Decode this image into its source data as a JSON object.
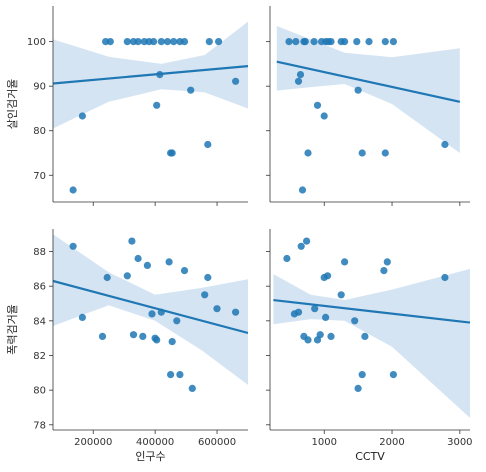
{
  "figure": {
    "type": "pairplot_regression_grid",
    "row_labels": [
      "살인검거율",
      "폭력검거율"
    ],
    "col_labels": [
      "인구수",
      "CCTV"
    ],
    "point_color": "#1f77b4",
    "band_color": "#c6dbef"
  },
  "chart_data": [
    {
      "type": "scatter",
      "row": 0,
      "col": 0,
      "xlabel": "",
      "ylabel": "살인검거율",
      "xlim": [
        70000,
        700000
      ],
      "ylim": [
        64,
        108
      ],
      "yticks": [
        70,
        80,
        90,
        100
      ],
      "xticks": [],
      "points": [
        [
          135000,
          66.7
        ],
        [
          165000,
          83.3
        ],
        [
          240000,
          100
        ],
        [
          255000,
          100
        ],
        [
          310000,
          100
        ],
        [
          330000,
          100
        ],
        [
          345000,
          100
        ],
        [
          365000,
          100
        ],
        [
          380000,
          100
        ],
        [
          395000,
          100
        ],
        [
          405000,
          85.7
        ],
        [
          415000,
          92.6
        ],
        [
          420000,
          100
        ],
        [
          440000,
          100
        ],
        [
          450000,
          75
        ],
        [
          455000,
          75
        ],
        [
          460000,
          100
        ],
        [
          480000,
          100
        ],
        [
          495000,
          100
        ],
        [
          515000,
          89.1
        ],
        [
          570000,
          76.9
        ],
        [
          575000,
          100
        ],
        [
          605000,
          100
        ],
        [
          660000,
          91.1
        ]
      ],
      "regression": {
        "x": [
          70000,
          700000
        ],
        "y": [
          90.6,
          94.5
        ]
      },
      "ci": {
        "x": [
          70000,
          250000,
          420000,
          560000,
          700000
        ],
        "lower": [
          80.5,
          86.5,
          89.3,
          88.6,
          85.0
        ],
        "upper": [
          100.5,
          96.6,
          95.0,
          97.0,
          104.5
        ]
      }
    },
    {
      "type": "scatter",
      "row": 0,
      "col": 1,
      "xlabel": "",
      "ylabel": "",
      "xlim": [
        200,
        3150
      ],
      "ylim": [
        64,
        108
      ],
      "yticks": [
        70,
        80,
        90,
        100
      ],
      "xticks": [],
      "points": [
        [
          480,
          100
        ],
        [
          580,
          100
        ],
        [
          620,
          91.1
        ],
        [
          650,
          92.6
        ],
        [
          700,
          100
        ],
        [
          720,
          100
        ],
        [
          760,
          75
        ],
        [
          850,
          100
        ],
        [
          900,
          85.7
        ],
        [
          960,
          100
        ],
        [
          1000,
          83.3
        ],
        [
          1020,
          100
        ],
        [
          1060,
          100
        ],
        [
          1100,
          100
        ],
        [
          1250,
          100
        ],
        [
          1300,
          100
        ],
        [
          1480,
          100
        ],
        [
          1500,
          89.1
        ],
        [
          1560,
          75
        ],
        [
          1660,
          100
        ],
        [
          1900,
          75
        ],
        [
          1900,
          100
        ],
        [
          2020,
          100
        ],
        [
          2780,
          76.9
        ],
        [
          680,
          66.7
        ]
      ],
      "regression": {
        "x": [
          300,
          3000
        ],
        "y": [
          95.5,
          86.5
        ]
      },
      "ci": {
        "x": [
          300,
          800,
          1300,
          2000,
          3000
        ],
        "lower": [
          89.0,
          89.8,
          90.5,
          86.0,
          75.0
        ],
        "upper": [
          103.5,
          100.5,
          97.5,
          96.5,
          98.5
        ]
      }
    },
    {
      "type": "scatter",
      "row": 1,
      "col": 0,
      "xlabel": "인구수",
      "ylabel": "폭력검거율",
      "xlim": [
        70000,
        700000
      ],
      "ylim": [
        77.7,
        89.3
      ],
      "yticks": [
        78,
        80,
        82,
        84,
        86,
        88
      ],
      "xticks": [
        200000,
        400000,
        600000
      ],
      "xticklabels": [
        "200000",
        "400000",
        "600000"
      ],
      "points": [
        [
          135000,
          88.3
        ],
        [
          165000,
          84.2
        ],
        [
          230000,
          83.1
        ],
        [
          245000,
          86.5
        ],
        [
          310000,
          86.6
        ],
        [
          325000,
          88.6
        ],
        [
          330000,
          83.2
        ],
        [
          345000,
          87.6
        ],
        [
          360000,
          83.1
        ],
        [
          375000,
          87.2
        ],
        [
          390000,
          84.4
        ],
        [
          400000,
          83.0
        ],
        [
          405000,
          82.9
        ],
        [
          420000,
          84.5
        ],
        [
          445000,
          87.4
        ],
        [
          450000,
          80.9
        ],
        [
          455000,
          82.8
        ],
        [
          470000,
          84.0
        ],
        [
          480000,
          80.9
        ],
        [
          495000,
          86.9
        ],
        [
          520000,
          80.1
        ],
        [
          560000,
          85.5
        ],
        [
          570000,
          86.5
        ],
        [
          600000,
          84.7
        ],
        [
          660000,
          84.5
        ]
      ],
      "regression": {
        "x": [
          70000,
          700000
        ],
        "y": [
          86.3,
          83.3
        ]
      },
      "ci": {
        "x": [
          70000,
          250000,
          400000,
          550000,
          700000
        ],
        "lower": [
          83.7,
          84.9,
          84.0,
          82.3,
          80.3
        ],
        "upper": [
          89.0,
          86.8,
          85.5,
          85.9,
          86.4
        ]
      }
    },
    {
      "type": "scatter",
      "row": 1,
      "col": 1,
      "xlabel": "CCTV",
      "ylabel": "",
      "xlim": [
        200,
        3150
      ],
      "ylim": [
        77.7,
        89.3
      ],
      "yticks": [
        78,
        80,
        82,
        84,
        86,
        88
      ],
      "xticks": [
        1000,
        2000,
        3000
      ],
      "xticklabels": [
        "1000",
        "2000",
        "3000"
      ],
      "points": [
        [
          450,
          87.6
        ],
        [
          560,
          84.4
        ],
        [
          620,
          84.5
        ],
        [
          660,
          88.3
        ],
        [
          700,
          83.1
        ],
        [
          740,
          88.6
        ],
        [
          760,
          82.9
        ],
        [
          860,
          84.7
        ],
        [
          900,
          82.9
        ],
        [
          940,
          83.2
        ],
        [
          1000,
          86.5
        ],
        [
          1020,
          84.2
        ],
        [
          1050,
          86.6
        ],
        [
          1100,
          83.1
        ],
        [
          1250,
          85.5
        ],
        [
          1300,
          87.4
        ],
        [
          1450,
          84.0
        ],
        [
          1500,
          80.1
        ],
        [
          1560,
          80.9
        ],
        [
          1600,
          83.1
        ],
        [
          1880,
          86.9
        ],
        [
          1930,
          87.4
        ],
        [
          2020,
          80.9
        ],
        [
          2780,
          86.5
        ]
      ],
      "regression": {
        "x": [
          250,
          3150
        ],
        "y": [
          85.2,
          83.9
        ]
      },
      "ci": {
        "x": [
          250,
          800,
          1300,
          2000,
          3150
        ],
        "lower": [
          83.8,
          84.1,
          84.0,
          82.5,
          78.4
        ],
        "upper": [
          86.7,
          85.5,
          85.2,
          85.8,
          87.0
        ]
      }
    }
  ]
}
